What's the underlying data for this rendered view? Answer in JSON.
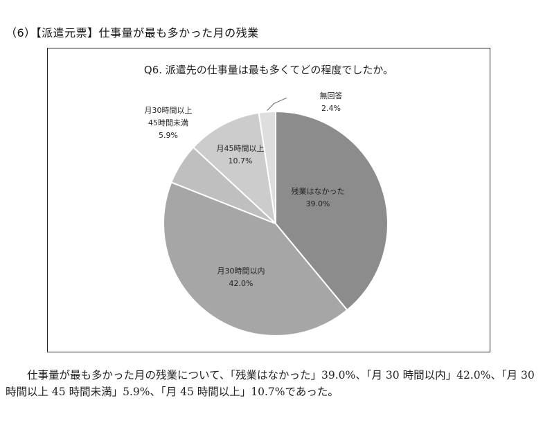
{
  "section_title": "（6）【派遣元票】仕事量が最も多かった月の残業",
  "chart_data": {
    "type": "pie",
    "title": "Q6. 派遣先の仕事量は最も多くてどの程度でしたか。",
    "slices": [
      {
        "label": "残業はなかった",
        "value": 39.0,
        "value_label": "39.0%",
        "color": "#8c8c8c"
      },
      {
        "label": "月30時間以内",
        "value": 42.0,
        "value_label": "42.0%",
        "color": "#a6a6a6"
      },
      {
        "label": "月30時間以上45時間未満",
        "label_lines": [
          "月30時間以上",
          "45時間未満"
        ],
        "value": 5.9,
        "value_label": "5.9%",
        "color": "#bfbfbf"
      },
      {
        "label": "月45時間以上",
        "value": 10.7,
        "value_label": "10.7%",
        "color": "#cccccc"
      },
      {
        "label": "無回答",
        "value": 2.4,
        "value_label": "2.4%",
        "color": "#dedede"
      }
    ]
  },
  "body_text": "仕事量が最も多かった月の残業について、「残業はなかった」39.0%、「月 30 時間以内」42.0%、「月 30 時間以上 45 時間未満」5.9%、「月 45 時間以上」10.7%であった。"
}
